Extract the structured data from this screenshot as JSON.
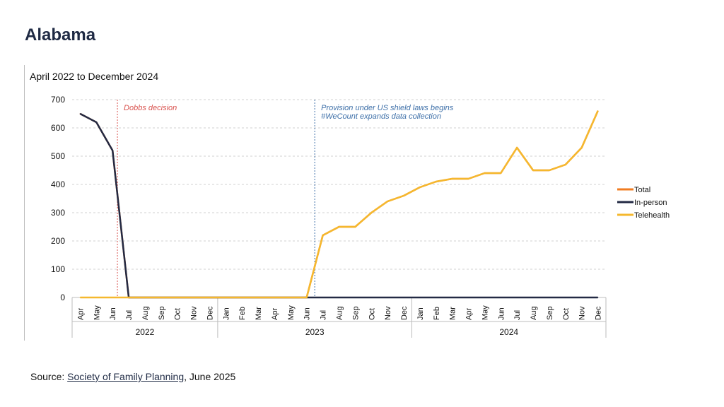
{
  "page": {
    "title": "Alabama"
  },
  "source": {
    "prefix": "Source: ",
    "link_text": "Society of Family Planning",
    "suffix": ", June 2025"
  },
  "chart_data": {
    "type": "line",
    "title": "April 2022 to December 2024",
    "ylim": [
      0,
      700
    ],
    "yticks": [
      0,
      100,
      200,
      300,
      400,
      500,
      600,
      700
    ],
    "grid": true,
    "legend": "right",
    "categories": [
      "Apr",
      "May",
      "Jun",
      "Jul",
      "Aug",
      "Sep",
      "Oct",
      "Nov",
      "Dec",
      "Jan",
      "Feb",
      "Mar",
      "Apr",
      "May",
      "Jun",
      "Jul",
      "Aug",
      "Sep",
      "Oct",
      "Nov",
      "Dec",
      "Jan",
      "Feb",
      "Mar",
      "Apr",
      "May",
      "Jun",
      "Jul",
      "Aug",
      "Sep",
      "Oct",
      "Nov",
      "Dec"
    ],
    "year_groups": [
      {
        "label": "2022",
        "start": 0,
        "end": 8
      },
      {
        "label": "2023",
        "start": 9,
        "end": 20
      },
      {
        "label": "2024",
        "start": 21,
        "end": 32
      }
    ],
    "series": [
      {
        "name": "Total",
        "color": "#f07c22",
        "values": [
          650,
          620,
          520,
          0,
          0,
          0,
          0,
          0,
          0,
          0,
          0,
          0,
          0,
          0,
          0,
          220,
          250,
          250,
          300,
          340,
          360,
          390,
          410,
          420,
          420,
          440,
          440,
          530,
          450,
          450,
          470,
          530,
          660
        ]
      },
      {
        "name": "In-person",
        "color": "#232a44",
        "values": [
          650,
          620,
          520,
          0,
          0,
          0,
          0,
          0,
          0,
          0,
          0,
          0,
          0,
          0,
          0,
          0,
          0,
          0,
          0,
          0,
          0,
          0,
          0,
          0,
          0,
          0,
          0,
          0,
          0,
          0,
          0,
          0,
          0
        ]
      },
      {
        "name": "Telehealth",
        "color": "#f5b82e",
        "values": [
          0,
          0,
          0,
          0,
          0,
          0,
          0,
          0,
          0,
          0,
          0,
          0,
          0,
          0,
          0,
          220,
          250,
          250,
          300,
          340,
          360,
          390,
          410,
          420,
          420,
          440,
          440,
          530,
          450,
          450,
          470,
          530,
          660
        ]
      }
    ],
    "annotations": [
      {
        "index": 2.3,
        "color": "#d9534f",
        "lines": [
          "Dobbs decision"
        ]
      },
      {
        "index": 14.5,
        "color": "#3d6fa8",
        "lines": [
          "Provision under US shield laws begins",
          "#WeCount expands data collection"
        ]
      }
    ]
  }
}
